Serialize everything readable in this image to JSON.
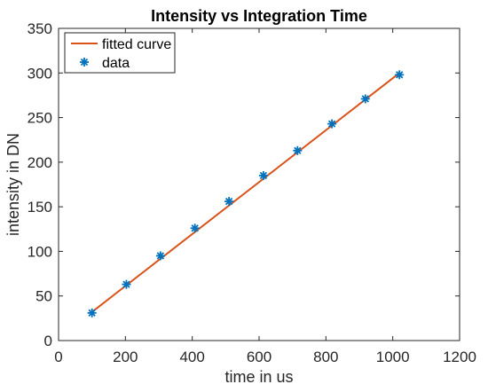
{
  "chart_data": {
    "type": "line",
    "title": "Intensity vs Integration Time",
    "xlabel": "time in us",
    "ylabel": "intensity in DN",
    "xlim": [
      0,
      1200
    ],
    "ylim": [
      0,
      350
    ],
    "x_ticks": [
      0,
      200,
      400,
      600,
      800,
      1000,
      1200
    ],
    "y_ticks": [
      0,
      50,
      100,
      150,
      200,
      250,
      300,
      350
    ],
    "grid": false,
    "legend_position": "top-left",
    "series": [
      {
        "name": "fitted curve",
        "kind": "line",
        "color": "#D95319",
        "x": [
          100,
          1020
        ],
        "y": [
          32,
          300
        ]
      },
      {
        "name": "data",
        "kind": "scatter",
        "marker": "asterisk",
        "color": "#0072BD",
        "x": [
          100,
          203,
          305,
          408,
          510,
          613,
          715,
          818,
          918,
          1020
        ],
        "y": [
          31,
          63,
          95,
          126,
          156,
          185,
          213,
          243,
          271,
          298
        ]
      }
    ]
  }
}
